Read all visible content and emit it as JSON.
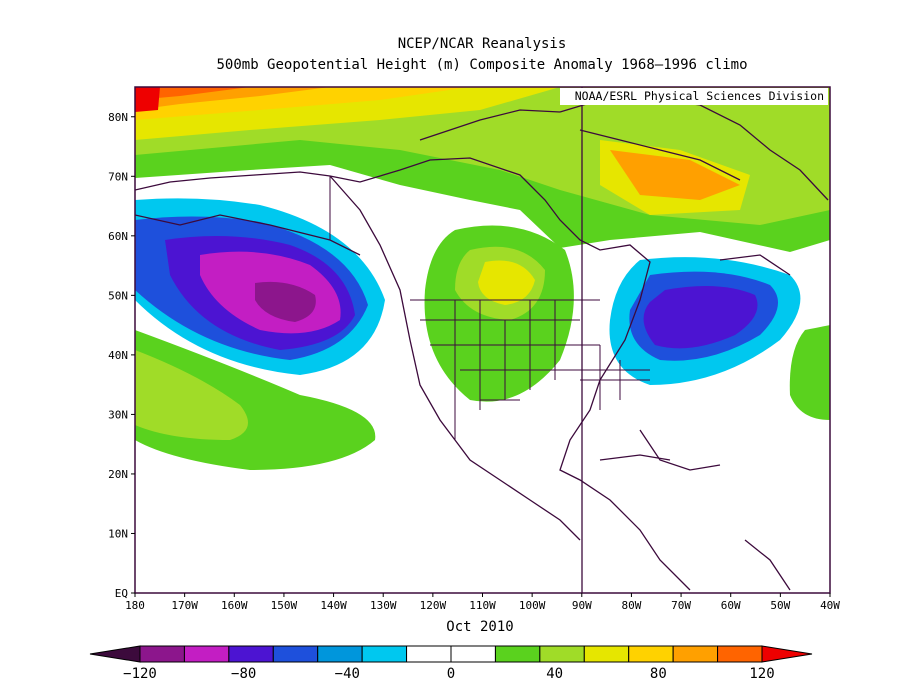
{
  "title": "NCEP/NCAR Reanalysis",
  "subtitle": "500mb Geopotential Height (m) Composite Anomaly 1968–1996 climo",
  "credit": "NOAA/ESRL Physical Sciences Division",
  "period": "Oct 2010",
  "lat_labels": [
    "EQ",
    "10N",
    "20N",
    "30N",
    "40N",
    "50N",
    "60N",
    "70N",
    "80N"
  ],
  "lon_labels": [
    "180",
    "170W",
    "160W",
    "150W",
    "140W",
    "130W",
    "120W",
    "110W",
    "100W",
    "90W",
    "80W",
    "70W",
    "60W",
    "50W",
    "40W"
  ],
  "colorbar": {
    "labels": [
      "−120",
      "−80",
      "−40",
      "0",
      "40",
      "80",
      "120"
    ],
    "colors": [
      "#3c0a3c",
      "#8c168c",
      "#c31ec3",
      "#4c14d2",
      "#1e50dc",
      "#0096dc",
      "#00c8ef",
      "#ffffff",
      "#ffffff",
      "#5ad21e",
      "#a0dc28",
      "#e6e600",
      "#ffd200",
      "#ffa000",
      "#ff6400",
      "#ee0000"
    ]
  }
}
